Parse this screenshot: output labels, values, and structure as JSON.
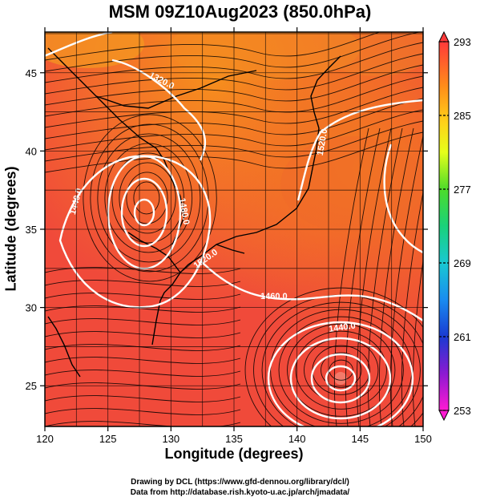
{
  "title": "MSM 09Z10Aug2023 (850.0hPa)",
  "x_axis_label": "Longitude (degrees)",
  "y_axis_label": "Latitude (degrees)",
  "x_ticks": [
    "120",
    "125",
    "130",
    "135",
    "140",
    "145",
    "150"
  ],
  "y_ticks": [
    "25",
    "30",
    "35",
    "40",
    "45"
  ],
  "x_range": [
    120,
    150
  ],
  "y_range": [
    22.4,
    47.6
  ],
  "colorbar": {
    "range": [
      253,
      293
    ],
    "labels": [
      "293",
      "285",
      "277",
      "269",
      "261",
      "253"
    ]
  },
  "contours": {
    "labels": [
      "1320.0",
      "1440.0",
      "1480.0",
      "1520.0",
      "1440.0",
      "1460.0",
      "1520.0"
    ]
  },
  "footer": {
    "line1": "Drawing by DCL (https://www.gfd-dennou.org/library/dcl/)",
    "line2": "Data from http://database.rish.kyoto-u.ac.jp/arch/jmadata/"
  },
  "colors": {
    "background_field": "#f04a3a",
    "warm_field": "#f27a2a",
    "contour": "#ffffff",
    "coastline": "#000000"
  }
}
